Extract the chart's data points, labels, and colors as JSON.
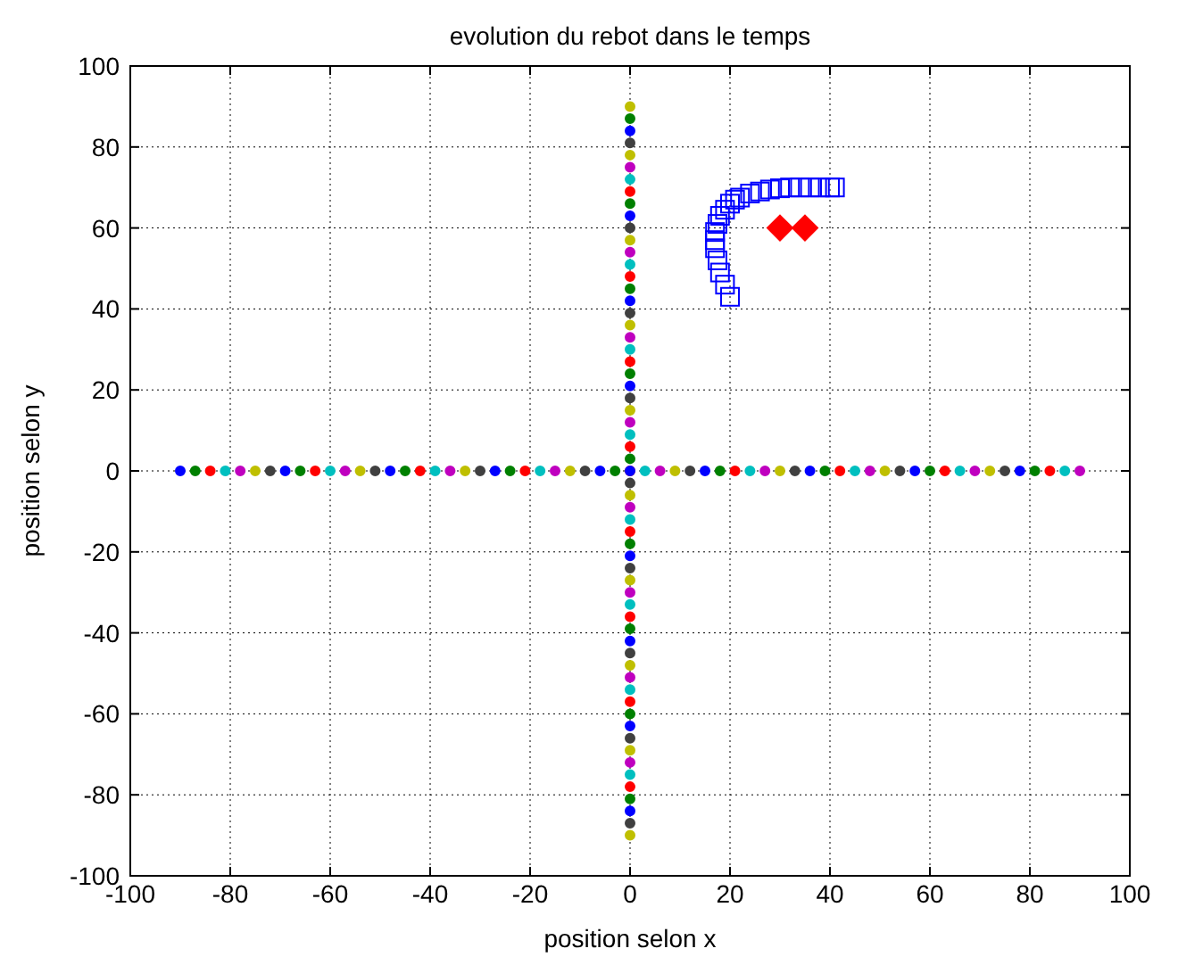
{
  "chart_data": {
    "type": "scatter",
    "title": "evolution du rebot dans le temps",
    "xlabel": "position selon x",
    "ylabel": "position selon y",
    "xlim": [
      -100,
      100
    ],
    "ylim": [
      -100,
      100
    ],
    "xticks": [
      -100,
      -80,
      -60,
      -40,
      -20,
      0,
      20,
      40,
      60,
      80,
      100
    ],
    "yticks": [
      -100,
      -80,
      -60,
      -40,
      -20,
      0,
      20,
      40,
      60,
      80,
      100
    ],
    "grid": true,
    "series": [
      {
        "marker": "circle",
        "x": [
          -90,
          -87,
          -84,
          -81,
          -78,
          -75,
          -72,
          -69,
          -66,
          -63,
          -60,
          -57,
          -54,
          -51,
          -48,
          -45,
          -42,
          -39,
          -36,
          -33,
          -30,
          -27,
          -24,
          -21,
          -18,
          -15,
          -12,
          -9,
          -6,
          -3,
          0,
          3,
          6,
          9,
          12,
          15,
          18,
          21,
          24,
          27,
          30,
          33,
          36,
          39,
          42,
          45,
          48,
          51,
          54,
          57,
          60,
          63,
          66,
          69,
          72,
          75,
          78,
          81,
          84,
          87,
          90
        ],
        "values": [
          0,
          0,
          0,
          0,
          0,
          0,
          0,
          0,
          0,
          0,
          0,
          0,
          0,
          0,
          0,
          0,
          0,
          0,
          0,
          0,
          0,
          0,
          0,
          0,
          0,
          0,
          0,
          0,
          0,
          0,
          0,
          0,
          0,
          0,
          0,
          0,
          0,
          0,
          0,
          0,
          0,
          0,
          0,
          0,
          0,
          0,
          0,
          0,
          0,
          0,
          0,
          0,
          0,
          0,
          0,
          0,
          0,
          0,
          0,
          0,
          0
        ],
        "colors": [
          "#0000ff",
          "#008000",
          "#ff0000",
          "#00bfbf",
          "#bf00bf",
          "#bfbf00",
          "#404040",
          "#0000ff",
          "#008000",
          "#ff0000",
          "#00bfbf",
          "#bf00bf",
          "#bfbf00",
          "#404040",
          "#0000ff",
          "#008000",
          "#ff0000",
          "#00bfbf",
          "#bf00bf",
          "#bfbf00",
          "#404040",
          "#0000ff",
          "#008000",
          "#ff0000",
          "#00bfbf",
          "#bf00bf",
          "#bfbf00",
          "#404040",
          "#0000ff",
          "#008000",
          "#ff0000",
          "#00bfbf",
          "#bf00bf",
          "#bfbf00",
          "#404040",
          "#0000ff",
          "#008000",
          "#ff0000",
          "#00bfbf",
          "#bf00bf",
          "#bfbf00",
          "#404040",
          "#0000ff",
          "#008000",
          "#ff0000",
          "#00bfbf",
          "#bf00bf",
          "#bfbf00",
          "#404040",
          "#0000ff",
          "#008000",
          "#ff0000",
          "#00bfbf",
          "#bf00bf",
          "#bfbf00",
          "#404040",
          "#0000ff",
          "#008000",
          "#ff0000",
          "#00bfbf",
          "#bf00bf"
        ]
      },
      {
        "marker": "circle",
        "x": [
          0,
          0,
          0,
          0,
          0,
          0,
          0,
          0,
          0,
          0,
          0,
          0,
          0,
          0,
          0,
          0,
          0,
          0,
          0,
          0,
          0,
          0,
          0,
          0,
          0,
          0,
          0,
          0,
          0,
          0,
          0,
          0,
          0,
          0,
          0,
          0,
          0,
          0,
          0,
          0,
          0,
          0,
          0,
          0,
          0,
          0,
          0,
          0,
          0,
          0,
          0,
          0,
          0,
          0,
          0,
          0,
          0,
          0,
          0,
          0,
          0
        ],
        "values": [
          -90,
          -87,
          -84,
          -81,
          -78,
          -75,
          -72,
          -69,
          -66,
          -63,
          -60,
          -57,
          -54,
          -51,
          -48,
          -45,
          -42,
          -39,
          -36,
          -33,
          -30,
          -27,
          -24,
          -21,
          -18,
          -15,
          -12,
          -9,
          -6,
          -3,
          0,
          3,
          6,
          9,
          12,
          15,
          18,
          21,
          24,
          27,
          30,
          33,
          36,
          39,
          42,
          45,
          48,
          51,
          54,
          57,
          60,
          63,
          66,
          69,
          72,
          75,
          78,
          81,
          84,
          87,
          90
        ],
        "colors": [
          "#bfbf00",
          "#404040",
          "#0000ff",
          "#008000",
          "#ff0000",
          "#00bfbf",
          "#bf00bf",
          "#bfbf00",
          "#404040",
          "#0000ff",
          "#008000",
          "#ff0000",
          "#00bfbf",
          "#bf00bf",
          "#bfbf00",
          "#404040",
          "#0000ff",
          "#008000",
          "#ff0000",
          "#00bfbf",
          "#bf00bf",
          "#bfbf00",
          "#404040",
          "#0000ff",
          "#008000",
          "#ff0000",
          "#00bfbf",
          "#bf00bf",
          "#bfbf00",
          "#404040",
          "#0000ff",
          "#008000",
          "#ff0000",
          "#00bfbf",
          "#bf00bf",
          "#bfbf00",
          "#404040",
          "#0000ff",
          "#008000",
          "#ff0000",
          "#00bfbf",
          "#bf00bf",
          "#bfbf00",
          "#404040",
          "#0000ff",
          "#008000",
          "#ff0000",
          "#00bfbf",
          "#bf00bf",
          "#bfbf00",
          "#404040",
          "#0000ff",
          "#008000",
          "#ff0000",
          "#00bfbf",
          "#bf00bf",
          "#bfbf00",
          "#404040",
          "#0000ff",
          "#008000",
          "#bfbf00"
        ]
      },
      {
        "marker": "square",
        "color": "#0000ff",
        "x": [
          20,
          19,
          18,
          17.5,
          17,
          17,
          17,
          17.5,
          18,
          19,
          20,
          21,
          22,
          24,
          26,
          28,
          30,
          32,
          34,
          36,
          38,
          40,
          41
        ],
        "values": [
          43,
          46,
          49,
          52,
          55,
          57,
          59,
          61,
          63,
          64.5,
          66,
          67,
          67.5,
          68.5,
          69,
          69.5,
          69.8,
          70,
          70,
          70,
          70,
          70,
          70
        ]
      },
      {
        "marker": "diamond",
        "color": "#ff0000",
        "x": [
          30,
          35
        ],
        "values": [
          60,
          60
        ]
      }
    ]
  }
}
